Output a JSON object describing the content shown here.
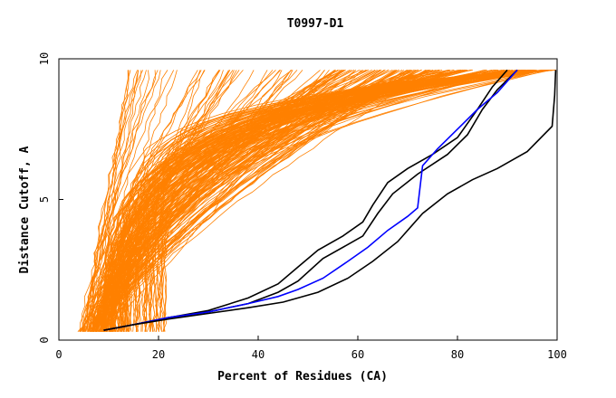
{
  "chart_data": {
    "type": "line",
    "title": "T0997-D1",
    "xlabel": "Percent of Residues (CA)",
    "ylabel": "Distance Cutoff, A",
    "xlim": [
      0,
      100
    ],
    "ylim": [
      0,
      10
    ],
    "x_ticks": [
      "0",
      "20",
      "40",
      "60",
      "80",
      "100"
    ],
    "y_ticks": [
      "0",
      "5",
      "10"
    ],
    "grid": false,
    "colors": {
      "background_series": "#ff8000",
      "highlight_primary": "#000000",
      "highlight_secondary": "#0000ff"
    },
    "highlighted_series": [
      {
        "color": "#000000",
        "points": [
          [
            9,
            0.35
          ],
          [
            15,
            0.55
          ],
          [
            22,
            0.8
          ],
          [
            30,
            1.05
          ],
          [
            38,
            1.5
          ],
          [
            44,
            2.0
          ],
          [
            48,
            2.6
          ],
          [
            52,
            3.2
          ],
          [
            57,
            3.7
          ],
          [
            61,
            4.2
          ],
          [
            63,
            4.8
          ],
          [
            66,
            5.6
          ],
          [
            70,
            6.1
          ],
          [
            75,
            6.6
          ],
          [
            80,
            7.2
          ],
          [
            84,
            8.2
          ],
          [
            87,
            9.0
          ],
          [
            90,
            9.6
          ]
        ]
      },
      {
        "color": "#000000",
        "points": [
          [
            9,
            0.35
          ],
          [
            15,
            0.55
          ],
          [
            22,
            0.8
          ],
          [
            30,
            1.0
          ],
          [
            38,
            1.3
          ],
          [
            44,
            1.7
          ],
          [
            48,
            2.1
          ],
          [
            53,
            2.9
          ],
          [
            58,
            3.4
          ],
          [
            61,
            3.7
          ],
          [
            64,
            4.5
          ],
          [
            67,
            5.2
          ],
          [
            72,
            5.9
          ],
          [
            78,
            6.6
          ],
          [
            82,
            7.3
          ],
          [
            85,
            8.2
          ],
          [
            88,
            8.9
          ],
          [
            92,
            9.6
          ]
        ]
      },
      {
        "color": "#0000ff",
        "points": [
          [
            9,
            0.35
          ],
          [
            15,
            0.55
          ],
          [
            22,
            0.8
          ],
          [
            30,
            1.0
          ],
          [
            38,
            1.3
          ],
          [
            44,
            1.55
          ],
          [
            48,
            1.8
          ],
          [
            53,
            2.2
          ],
          [
            58,
            2.8
          ],
          [
            62,
            3.3
          ],
          [
            66,
            3.9
          ],
          [
            70,
            4.4
          ],
          [
            72,
            4.7
          ],
          [
            73,
            6.2
          ],
          [
            76,
            6.8
          ],
          [
            80,
            7.5
          ],
          [
            84,
            8.2
          ],
          [
            88,
            8.8
          ],
          [
            92,
            9.6
          ]
        ]
      },
      {
        "color": "#000000",
        "points": [
          [
            9,
            0.35
          ],
          [
            15,
            0.55
          ],
          [
            22,
            0.75
          ],
          [
            30,
            0.95
          ],
          [
            38,
            1.15
          ],
          [
            45,
            1.35
          ],
          [
            52,
            1.7
          ],
          [
            58,
            2.2
          ],
          [
            63,
            2.8
          ],
          [
            68,
            3.5
          ],
          [
            73,
            4.5
          ],
          [
            78,
            5.2
          ],
          [
            83,
            5.7
          ],
          [
            88,
            6.1
          ],
          [
            94,
            6.7
          ],
          [
            99,
            7.6
          ],
          [
            99.5,
            8.7
          ],
          [
            99.7,
            9.6
          ]
        ]
      }
    ]
  }
}
